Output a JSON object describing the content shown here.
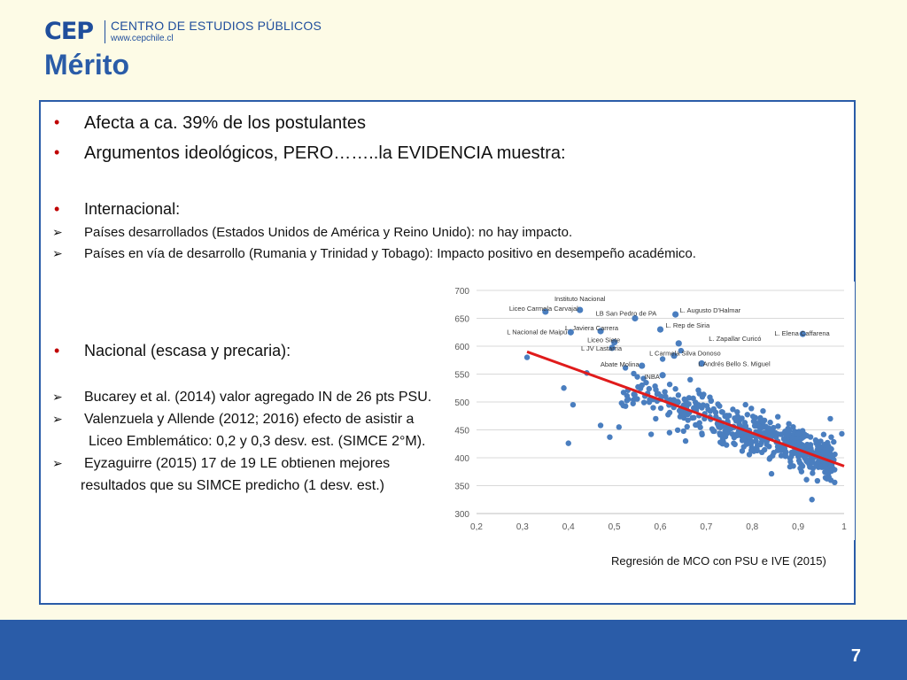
{
  "logo": {
    "cep": "CEP",
    "name": "CENTRO DE ESTUDIOS PÚBLICOS",
    "url": "www.cepchile.cl"
  },
  "title": "Mérito",
  "bullets": {
    "b1": "Afecta a ca. 39% de los postulantes",
    "b2": "Argumentos ideológicos, PERO……..la EVIDENCIA muestra:",
    "b3": "Internacional:",
    "s1": "Países desarrollados (Estados Unidos de América y Reino Unido): no hay impacto.",
    "s2": "Países en vía de desarrollo (Rumania y Trinidad y Tobago): Impacto positivo en desempeño académico.",
    "b4": "Nacional (escasa y precaria):",
    "n1": "Bucarey et al. (2014) valor agregado IN de 26 pts PSU.",
    "n2": "Valenzuela y Allende (2012; 2016) efecto de asistir a",
    "n2b": "Liceo Emblemático: 0,2 y 0,3 desv. est. (SIMCE 2°M).",
    "n3": "Eyzaguirre (2015) 17 de 19 LE obtienen mejores",
    "n3b": "resultados que su SIMCE predicho (1 desv. est.)",
    "bullet_mark": "•",
    "arrow_mark": "➢"
  },
  "caption": "Regresión de MCO con PSU e IVE (2015)",
  "page_number": "7",
  "colors": {
    "accent": "#2a5ca8",
    "points": "#4a7ebf",
    "regression": "#e01b1b",
    "bullet": "#c00000"
  },
  "chart_data": {
    "type": "scatter",
    "x_ticks": [
      "0,2",
      "0,3",
      "0,4",
      "0,5",
      "0,6",
      "0,7",
      "0,8",
      "0,9",
      "1"
    ],
    "y_ticks": [
      "300",
      "350",
      "400",
      "450",
      "500",
      "550",
      "600",
      "650",
      "700"
    ],
    "xlim": [
      0.2,
      1.0
    ],
    "ylim": [
      300,
      700
    ],
    "regression": {
      "x": [
        0.31,
        1.0
      ],
      "y": [
        590,
        385
      ]
    },
    "labeled_points": [
      {
        "name": "Instituto Nacional",
        "x": 0.425,
        "y": 665
      },
      {
        "name": "Liceo Carmela Carvajal",
        "x": 0.35,
        "y": 662
      },
      {
        "name": "LB San Pedro de PA",
        "x": 0.545,
        "y": 650
      },
      {
        "name": "L. Augusto D'Halmar",
        "x": 0.633,
        "y": 657
      },
      {
        "name": "L Nacional de Maipú",
        "x": 0.405,
        "y": 625
      },
      {
        "name": "L. Javiera Carrera",
        "x": 0.47,
        "y": 627
      },
      {
        "name": "L. Rep de Siria",
        "x": 0.6,
        "y": 630
      },
      {
        "name": "L. Elena Caffarena",
        "x": 0.91,
        "y": 622
      },
      {
        "name": "L. Zapallar Curicó",
        "x": 0.64,
        "y": 605
      },
      {
        "name": "Liceo Siete",
        "x": 0.5,
        "y": 607
      },
      {
        "name": "L JV Lastarria",
        "x": 0.495,
        "y": 597
      },
      {
        "name": "L Carmela Silva Donoso",
        "x": 0.63,
        "y": 583
      },
      {
        "name": "L Andrés Bello S. Miguel",
        "x": 0.69,
        "y": 569
      },
      {
        "name": "Abate Molina",
        "x": 0.56,
        "y": 565
      },
      {
        "name": "INBA",
        "x": 0.605,
        "y": 548
      }
    ]
  }
}
